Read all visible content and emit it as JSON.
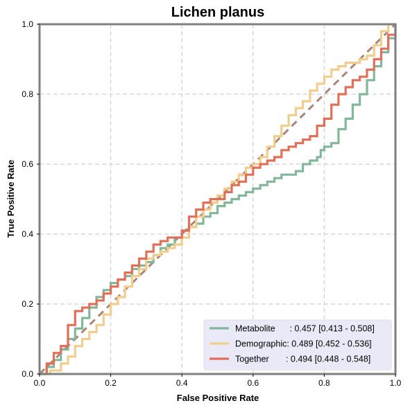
{
  "chart_data": {
    "type": "line",
    "title": "Lichen planus",
    "xlabel": "False Positive Rate",
    "ylabel": "True Positive Rate",
    "xlim": [
      0,
      1
    ],
    "ylim": [
      0,
      1
    ],
    "xticks": [
      "0.0",
      "0.2",
      "0.4",
      "0.6",
      "0.8",
      "1.0"
    ],
    "yticks": [
      "0.0",
      "0.2",
      "0.4",
      "0.6",
      "0.8",
      "1.0"
    ],
    "grid": true,
    "legend_position": "bottom-right",
    "series": [
      {
        "name": "Metabolite",
        "legend_label": "Metabolite      : 0.457 [0.413 - 0.508]",
        "color": "#82b79a",
        "x": [
          0,
          0.02,
          0.04,
          0.06,
          0.08,
          0.1,
          0.12,
          0.14,
          0.16,
          0.18,
          0.2,
          0.22,
          0.24,
          0.26,
          0.28,
          0.3,
          0.32,
          0.34,
          0.36,
          0.38,
          0.4,
          0.42,
          0.44,
          0.46,
          0.48,
          0.5,
          0.52,
          0.54,
          0.56,
          0.58,
          0.6,
          0.62,
          0.64,
          0.66,
          0.68,
          0.7,
          0.72,
          0.74,
          0.76,
          0.78,
          0.79,
          0.8,
          0.82,
          0.84,
          0.86,
          0.88,
          0.9,
          0.92,
          0.94,
          0.96,
          0.98,
          1.0
        ],
        "y": [
          0,
          0.02,
          0.04,
          0.07,
          0.1,
          0.13,
          0.16,
          0.19,
          0.22,
          0.24,
          0.26,
          0.27,
          0.28,
          0.3,
          0.31,
          0.32,
          0.34,
          0.36,
          0.37,
          0.39,
          0.41,
          0.42,
          0.43,
          0.45,
          0.46,
          0.48,
          0.49,
          0.5,
          0.51,
          0.52,
          0.53,
          0.54,
          0.55,
          0.56,
          0.57,
          0.57,
          0.58,
          0.6,
          0.61,
          0.62,
          0.64,
          0.65,
          0.66,
          0.7,
          0.73,
          0.77,
          0.8,
          0.84,
          0.88,
          0.92,
          0.96,
          1.0
        ]
      },
      {
        "name": "Demographic",
        "legend_label": "Demographic: 0.489 [0.452 - 0.536]",
        "color": "#f1cd8e",
        "x": [
          0,
          0.03,
          0.06,
          0.08,
          0.1,
          0.12,
          0.14,
          0.16,
          0.18,
          0.2,
          0.22,
          0.24,
          0.26,
          0.28,
          0.3,
          0.32,
          0.34,
          0.36,
          0.38,
          0.4,
          0.42,
          0.44,
          0.46,
          0.48,
          0.5,
          0.52,
          0.54,
          0.56,
          0.58,
          0.6,
          0.62,
          0.64,
          0.66,
          0.68,
          0.7,
          0.72,
          0.74,
          0.76,
          0.78,
          0.8,
          0.82,
          0.84,
          0.86,
          0.88,
          0.9,
          0.92,
          0.94,
          0.96,
          0.98,
          1.0
        ],
        "y": [
          0,
          0.01,
          0.03,
          0.05,
          0.08,
          0.1,
          0.12,
          0.14,
          0.17,
          0.2,
          0.22,
          0.25,
          0.28,
          0.3,
          0.33,
          0.34,
          0.35,
          0.36,
          0.37,
          0.39,
          0.42,
          0.45,
          0.47,
          0.49,
          0.51,
          0.53,
          0.55,
          0.57,
          0.59,
          0.6,
          0.62,
          0.65,
          0.68,
          0.71,
          0.74,
          0.76,
          0.78,
          0.81,
          0.83,
          0.85,
          0.87,
          0.88,
          0.89,
          0.89,
          0.9,
          0.91,
          0.94,
          0.98,
          1.0,
          1.0
        ]
      },
      {
        "name": "Together",
        "legend_label": "Together       : 0.494 [0.448 - 0.548]",
        "color": "#e07059",
        "x": [
          0,
          0.02,
          0.04,
          0.06,
          0.08,
          0.1,
          0.12,
          0.14,
          0.16,
          0.18,
          0.2,
          0.22,
          0.24,
          0.26,
          0.28,
          0.3,
          0.32,
          0.34,
          0.36,
          0.38,
          0.4,
          0.42,
          0.44,
          0.46,
          0.48,
          0.5,
          0.52,
          0.54,
          0.56,
          0.58,
          0.6,
          0.62,
          0.64,
          0.66,
          0.68,
          0.7,
          0.72,
          0.74,
          0.76,
          0.78,
          0.8,
          0.82,
          0.84,
          0.86,
          0.88,
          0.9,
          0.92,
          0.94,
          0.96,
          0.98,
          1.0
        ],
        "y": [
          0,
          0.03,
          0.06,
          0.08,
          0.14,
          0.18,
          0.19,
          0.2,
          0.21,
          0.23,
          0.25,
          0.27,
          0.29,
          0.31,
          0.33,
          0.35,
          0.37,
          0.38,
          0.39,
          0.39,
          0.41,
          0.45,
          0.47,
          0.49,
          0.5,
          0.5,
          0.52,
          0.54,
          0.55,
          0.57,
          0.59,
          0.6,
          0.61,
          0.62,
          0.64,
          0.65,
          0.66,
          0.67,
          0.68,
          0.71,
          0.73,
          0.77,
          0.8,
          0.82,
          0.84,
          0.85,
          0.87,
          0.9,
          0.93,
          0.97,
          1.0
        ]
      }
    ],
    "reference_line": {
      "color": "#a98575",
      "x": [
        0,
        1
      ],
      "y": [
        0,
        1
      ]
    }
  }
}
